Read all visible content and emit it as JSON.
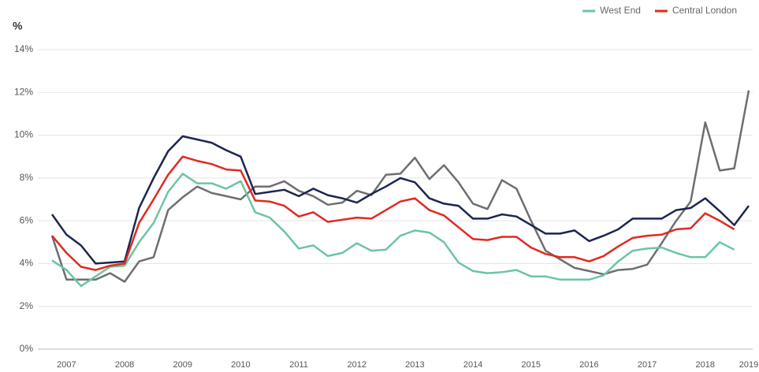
{
  "chart_data": {
    "type": "line",
    "y_label": "%",
    "categories": [
      null,
      "2007",
      null,
      null,
      null,
      "2008",
      null,
      null,
      null,
      "2009",
      null,
      null,
      null,
      "2010",
      null,
      null,
      null,
      "2011",
      null,
      null,
      null,
      "2012",
      null,
      null,
      null,
      "2013",
      null,
      null,
      null,
      "2014",
      null,
      null,
      null,
      "2015",
      null,
      null,
      null,
      "2016",
      null,
      null,
      null,
      "2017",
      null,
      null,
      null,
      "2018",
      null,
      null,
      "2019"
    ],
    "ylim": [
      0,
      14
    ],
    "yticks": [
      {
        "value": 0,
        "label": "0%"
      },
      {
        "value": 2,
        "label": "2%"
      },
      {
        "value": 4,
        "label": "4%"
      },
      {
        "value": 6,
        "label": "6%"
      },
      {
        "value": 8,
        "label": "8%"
      },
      {
        "value": 10,
        "label": "10%"
      },
      {
        "value": 12,
        "label": "12%"
      },
      {
        "value": 14,
        "label": "14%"
      }
    ],
    "grid": true,
    "legend": "top-right",
    "series": [
      {
        "color": "#6d6e73",
        "values": [
          5.3,
          3.25,
          3.25,
          3.25,
          3.55,
          3.15,
          4.1,
          4.3,
          6.5,
          7.1,
          7.6,
          7.3,
          7.15,
          7.0,
          7.6,
          7.6,
          7.85,
          7.4,
          7.15,
          6.75,
          6.85,
          7.4,
          7.2,
          8.15,
          8.2,
          8.95,
          7.95,
          8.6,
          7.8,
          6.8,
          6.55,
          7.9,
          7.5,
          6.0,
          4.6,
          4.2,
          3.8,
          3.65,
          3.5,
          3.7,
          3.75,
          3.95,
          4.95,
          6.0,
          6.9,
          10.6,
          8.35,
          8.45,
          12.1
        ]
      },
      {
        "color": "#1c2550",
        "values": [
          6.3,
          5.35,
          4.85,
          4.0,
          4.05,
          4.1,
          6.6,
          8.0,
          9.25,
          9.95,
          9.8,
          9.65,
          9.3,
          9.0,
          7.25,
          7.35,
          7.45,
          7.15,
          7.5,
          7.2,
          7.05,
          6.85,
          7.25,
          7.6,
          8.0,
          7.8,
          7.05,
          6.8,
          6.7,
          6.1,
          6.1,
          6.3,
          6.2,
          5.8,
          5.4,
          5.4,
          5.55,
          5.05,
          5.3,
          5.6,
          6.1,
          6.1,
          6.1,
          6.5,
          6.6,
          7.05,
          6.45,
          5.8,
          6.7
        ]
      },
      {
        "name": "West End",
        "color": "#6cc5a0",
        "values": [
          4.15,
          3.7,
          2.95,
          3.4,
          3.85,
          3.9,
          5.0,
          5.9,
          7.35,
          8.2,
          7.75,
          7.75,
          7.5,
          7.85,
          6.4,
          6.15,
          5.5,
          4.7,
          4.85,
          4.35,
          4.5,
          4.95,
          4.6,
          4.65,
          5.3,
          5.55,
          5.45,
          5.0,
          4.05,
          3.65,
          3.55,
          3.6,
          3.7,
          3.4,
          3.4,
          3.25,
          3.25,
          3.25,
          3.45,
          4.1,
          4.6,
          4.7,
          4.75,
          4.5,
          4.3,
          4.3,
          5.0,
          4.65,
          null
        ]
      },
      {
        "name": "Central London",
        "color": "#e02a20",
        "values": [
          5.3,
          4.5,
          3.85,
          3.7,
          3.9,
          4.0,
          5.9,
          7.0,
          8.15,
          9.0,
          8.8,
          8.65,
          8.4,
          8.35,
          6.95,
          6.9,
          6.7,
          6.2,
          6.4,
          5.95,
          6.05,
          6.15,
          6.1,
          6.5,
          6.9,
          7.05,
          6.5,
          6.25,
          5.7,
          5.15,
          5.1,
          5.25,
          5.25,
          4.75,
          4.45,
          4.3,
          4.3,
          4.1,
          4.35,
          4.8,
          5.2,
          5.3,
          5.35,
          5.6,
          5.65,
          6.35,
          6.0,
          5.6,
          null
        ]
      }
    ]
  }
}
